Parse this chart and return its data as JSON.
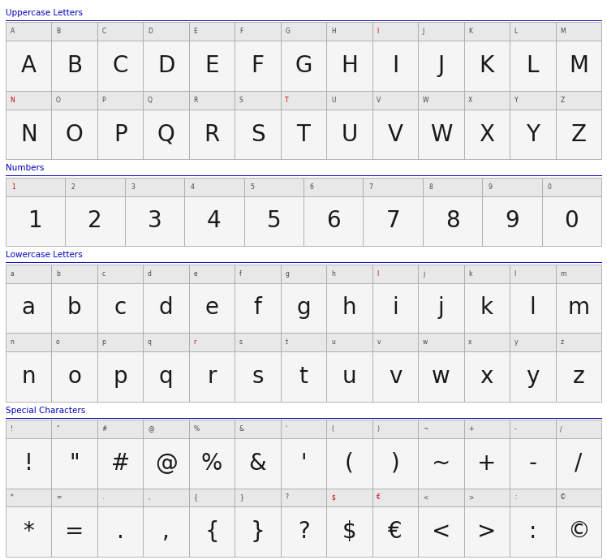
{
  "background_color": "#ffffff",
  "border_color": "#aaaaaa",
  "cell_label_bg": "#e8e8e8",
  "cell_char_bg": "#f5f5f5",
  "label_color": "#444444",
  "label_color_red": "#cc0000",
  "section_color": "#0000bb",
  "char_color": "#1a1a1a",
  "sections": [
    {
      "title": "Uppercase Letters",
      "rows": [
        {
          "labels": [
            "A",
            "B",
            "C",
            "D",
            "E",
            "F",
            "G",
            "H",
            "I",
            "J",
            "K",
            "L",
            "M"
          ],
          "chars": [
            "A",
            "B",
            "C",
            "D",
            "E",
            "F",
            "G",
            "H",
            "I",
            "J",
            "K",
            "L",
            "M"
          ],
          "red_labels": [
            false,
            false,
            false,
            false,
            false,
            false,
            false,
            false,
            true,
            false,
            false,
            false,
            false
          ]
        },
        {
          "labels": [
            "N",
            "O",
            "P",
            "Q",
            "R",
            "S",
            "T",
            "U",
            "V",
            "W",
            "X",
            "Y",
            "Z"
          ],
          "chars": [
            "N",
            "O",
            "P",
            "Q",
            "R",
            "S",
            "T",
            "U",
            "V",
            "W",
            "X",
            "Y",
            "Z"
          ],
          "red_labels": [
            true,
            false,
            false,
            false,
            false,
            false,
            true,
            false,
            false,
            false,
            false,
            false,
            false
          ]
        }
      ]
    },
    {
      "title": "Numbers",
      "rows": [
        {
          "labels": [
            "1",
            "2",
            "3",
            "4",
            "5",
            "6",
            "7",
            "8",
            "9",
            "0"
          ],
          "chars": [
            "1",
            "2",
            "3",
            "4",
            "5",
            "6",
            "7",
            "8",
            "9",
            "0"
          ],
          "red_labels": [
            true,
            false,
            false,
            false,
            false,
            false,
            false,
            false,
            false,
            false
          ]
        }
      ]
    },
    {
      "title": "Lowercase Letters",
      "rows": [
        {
          "labels": [
            "a",
            "b",
            "c",
            "d",
            "e",
            "f",
            "g",
            "h",
            "I",
            "j",
            "k",
            "l",
            "m"
          ],
          "chars": [
            "a",
            "b",
            "c",
            "d",
            "e",
            "f",
            "g",
            "h",
            "i",
            "j",
            "k",
            "l",
            "m"
          ],
          "red_labels": [
            false,
            false,
            false,
            false,
            false,
            false,
            false,
            false,
            true,
            false,
            false,
            false,
            false
          ]
        },
        {
          "labels": [
            "n",
            "o",
            "p",
            "q",
            "r",
            "s",
            "t",
            "u",
            "v",
            "w",
            "x",
            "y",
            "z"
          ],
          "chars": [
            "n",
            "o",
            "p",
            "q",
            "r",
            "s",
            "t",
            "u",
            "v",
            "w",
            "x",
            "y",
            "z"
          ],
          "red_labels": [
            false,
            false,
            false,
            false,
            true,
            false,
            false,
            false,
            false,
            false,
            false,
            false,
            false
          ]
        }
      ]
    },
    {
      "title": "Special Characters",
      "rows": [
        {
          "labels": [
            "!",
            "\"",
            "#",
            "@",
            "%",
            "&",
            "'",
            "(",
            ")",
            "~",
            "+",
            "-",
            "/"
          ],
          "chars": [
            "!",
            "\"",
            "#",
            "@",
            "%",
            "&",
            "'",
            "(",
            ")",
            "~",
            "+",
            "-",
            "/"
          ],
          "red_labels": [
            false,
            false,
            false,
            false,
            false,
            false,
            false,
            false,
            false,
            false,
            false,
            false,
            false
          ]
        },
        {
          "labels": [
            "*",
            "=",
            ".",
            ",",
            "{",
            "}",
            "?",
            "$",
            "€",
            "<",
            ">",
            ":",
            "©"
          ],
          "chars": [
            "*",
            "=",
            ".",
            ",",
            "{",
            "}",
            "?",
            "$",
            "€",
            "<",
            ">",
            ":",
            "©"
          ],
          "red_labels": [
            false,
            false,
            false,
            false,
            false,
            false,
            false,
            true,
            true,
            false,
            false,
            false,
            false
          ]
        }
      ]
    }
  ]
}
